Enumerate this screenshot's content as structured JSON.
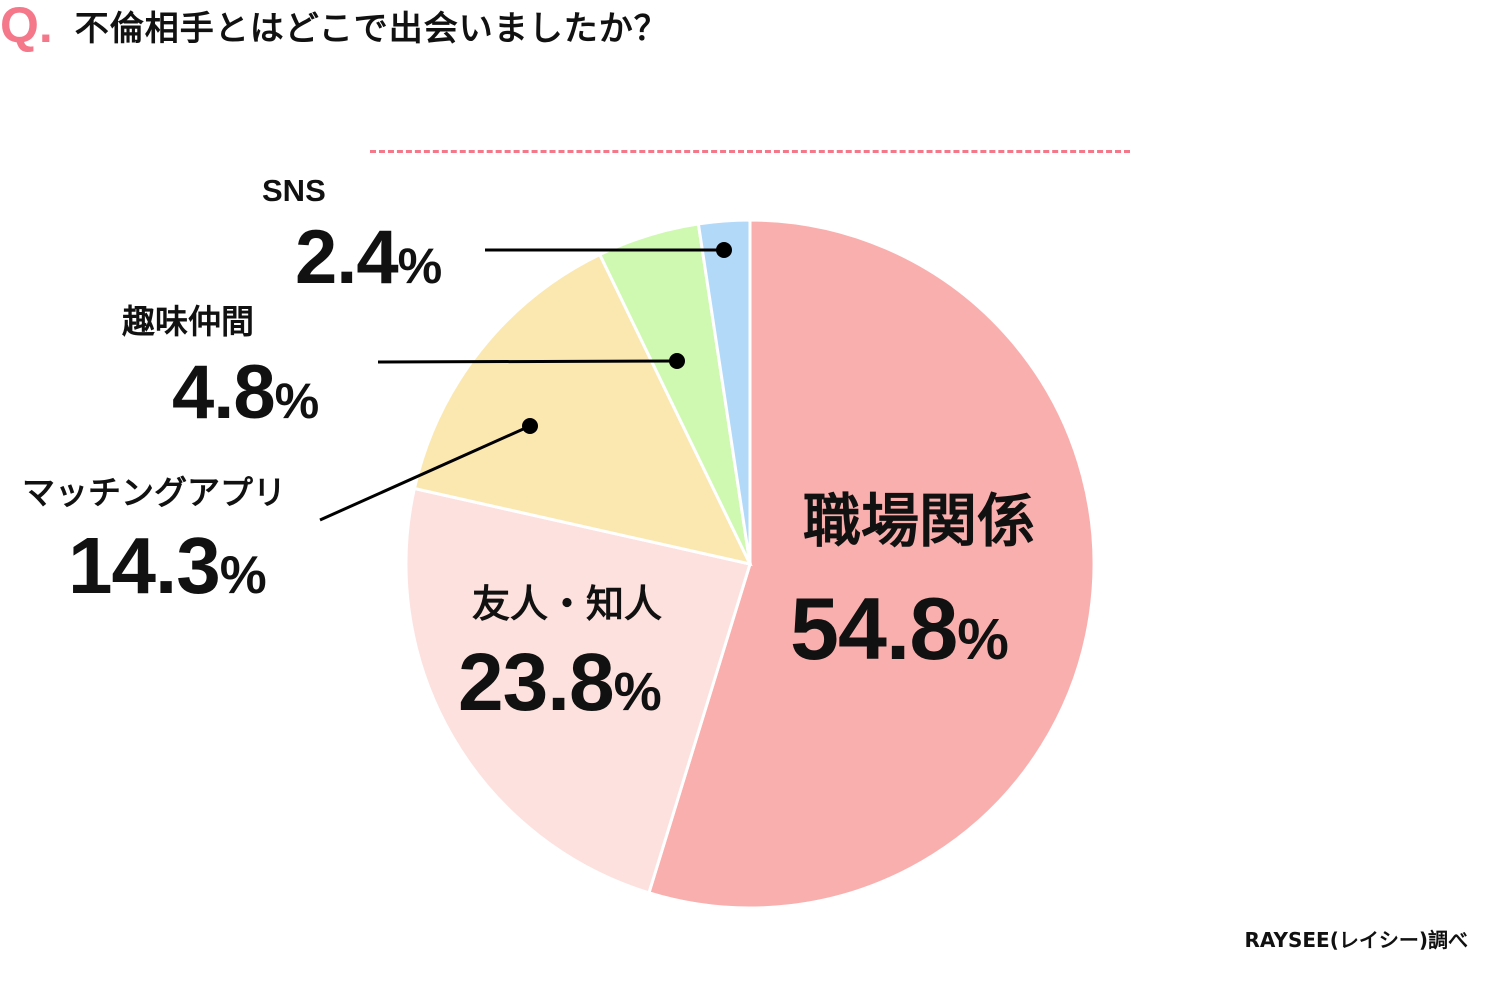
{
  "title": {
    "prefix": "Q.",
    "text": "不倫相手とはどこで出会いましたか？"
  },
  "chart_data": {
    "type": "pie",
    "title": "不倫相手とはどこで出会いましたか？",
    "start": "top",
    "direction": "clockwise",
    "slices": [
      {
        "label": "職場関係",
        "value": 54.8,
        "display": "54.8",
        "color": "#f9afae"
      },
      {
        "label": "友人・知人",
        "value": 23.8,
        "display": "23.8",
        "color": "#fce1de"
      },
      {
        "label": "マッチングアプリ",
        "value": 14.3,
        "display": "14.3",
        "color": "#fbe8b0"
      },
      {
        "label": "趣味仲間",
        "value": 4.8,
        "display": "4.8",
        "color": "#cff9b0"
      },
      {
        "label": "SNS",
        "value": 2.4,
        "display": "2.4",
        "color": "#b3d9f9"
      }
    ],
    "unit": "%"
  },
  "footer": "RAYSEE(レイシー)調べ"
}
